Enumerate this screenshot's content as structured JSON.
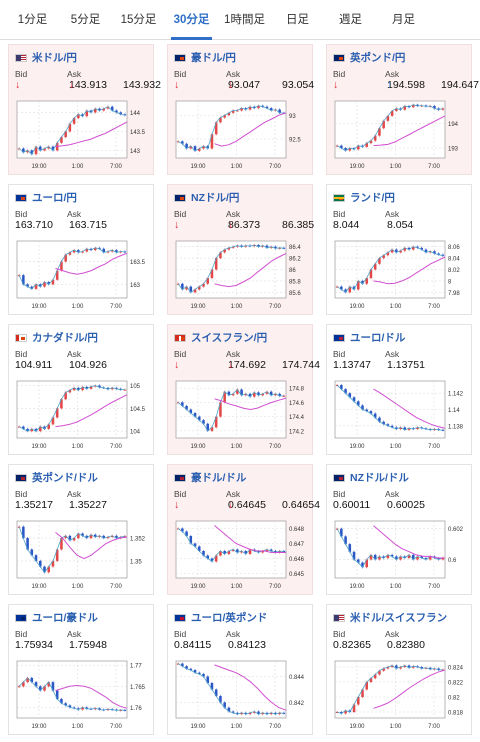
{
  "tabs": [
    {
      "label": "1分足",
      "active": false
    },
    {
      "label": "5分足",
      "active": false
    },
    {
      "label": "15分足",
      "active": false
    },
    {
      "label": "30分足",
      "active": true
    },
    {
      "label": "1時間足",
      "active": false
    },
    {
      "label": "日足",
      "active": false
    },
    {
      "label": "週足",
      "active": false
    },
    {
      "label": "月足",
      "active": false
    }
  ],
  "labels": {
    "bid": "Bid",
    "ask": "Ask"
  },
  "colors": {
    "up": "#e24848",
    "down": "#2a56c6",
    "ma_blue": "#4fa3c9",
    "ma_pink": "#d14fd1",
    "card_highlight": "#fdf0f0"
  },
  "pairs": [
    {
      "name": "米ドル/円",
      "flag": "us-jp",
      "bid": "143.913",
      "bid_dir": "down",
      "ask": "143.932",
      "ask_dir": "down",
      "highlight": true,
      "ticks": [
        "144",
        "143.5",
        "143"
      ],
      "xticks": [
        "19:00",
        "1:00",
        "7:00"
      ],
      "chart_data": {
        "type": "candlestick",
        "ylim": [
          142.8,
          144.3
        ],
        "close": [
          143.05,
          142.95,
          143.0,
          142.9,
          143.1,
          143.0,
          143.05,
          143.1,
          143.0,
          143.2,
          143.35,
          143.5,
          143.7,
          143.85,
          143.95,
          143.9,
          144.05,
          144.0,
          144.1,
          144.05,
          144.1,
          144.15,
          144.05,
          144.0,
          143.95,
          143.93
        ],
        "pink": [
          143.1,
          143.12,
          143.15,
          143.2,
          143.25,
          143.3,
          143.38,
          143.45,
          143.55,
          143.65,
          143.75
        ]
      }
    },
    {
      "name": "豪ドル/円",
      "flag": "au-jp",
      "bid": "93.047",
      "bid_dir": "down",
      "ask": "93.054",
      "ask_dir": "down",
      "highlight": true,
      "ticks": [
        "93",
        "92.5"
      ],
      "xticks": [
        "19:00",
        "1:00",
        "7:00"
      ],
      "chart_data": {
        "type": "candlestick",
        "ylim": [
          92.1,
          93.3
        ],
        "close": [
          92.45,
          92.4,
          92.3,
          92.35,
          92.25,
          92.3,
          92.35,
          92.3,
          92.6,
          92.85,
          92.95,
          93.0,
          93.05,
          93.1,
          93.1,
          93.15,
          93.12,
          93.18,
          93.15,
          93.2,
          93.18,
          93.15,
          93.1,
          93.12,
          93.05,
          93.047
        ],
        "pink": [
          92.4,
          92.35,
          92.38,
          92.45,
          92.55,
          92.65,
          92.75,
          92.85,
          92.92,
          93.0,
          93.05
        ]
      }
    },
    {
      "name": "英ポンド/円",
      "flag": "uk-jp",
      "bid": "194.598",
      "bid_dir": "down",
      "ask": "194.647",
      "ask_dir": "up",
      "highlight": true,
      "ticks": [
        "194",
        "193"
      ],
      "xticks": [
        "19:00",
        "1:00",
        "7:00"
      ],
      "chart_data": {
        "type": "candlestick",
        "ylim": [
          192.6,
          194.9
        ],
        "close": [
          193.1,
          193.0,
          192.9,
          193.0,
          192.95,
          193.1,
          193.05,
          193.2,
          193.3,
          193.5,
          193.8,
          194.1,
          194.3,
          194.5,
          194.6,
          194.55,
          194.7,
          194.65,
          194.75,
          194.7,
          194.72,
          194.68,
          194.7,
          194.6,
          194.55,
          194.6
        ],
        "pink": [
          193.1,
          193.12,
          193.15,
          193.25,
          193.4,
          193.55,
          193.7,
          193.85,
          194.0,
          194.15,
          194.3
        ]
      }
    },
    {
      "name": "ユーロ/円",
      "flag": "eu-jp",
      "bid": "163.710",
      "bid_dir": "none",
      "ask": "163.715",
      "ask_dir": "none",
      "highlight": false,
      "ticks": [
        "163.5",
        "163"
      ],
      "xticks": [
        "19:00",
        "1:00",
        "7:00"
      ],
      "chart_data": {
        "type": "candlestick",
        "ylim": [
          162.7,
          163.95
        ],
        "close": [
          163.2,
          163.0,
          162.95,
          162.9,
          163.0,
          162.95,
          163.05,
          163.0,
          163.1,
          163.3,
          163.5,
          163.65,
          163.7,
          163.75,
          163.7,
          163.72,
          163.78,
          163.75,
          163.8,
          163.78,
          163.7,
          163.72,
          163.75,
          163.7,
          163.72,
          163.71
        ],
        "pink": [
          163.35,
          163.3,
          163.25,
          163.22,
          163.25,
          163.3,
          163.38,
          163.45,
          163.55,
          163.62,
          163.68
        ]
      }
    },
    {
      "name": "NZドル/円",
      "flag": "nz-jp",
      "bid": "86.373",
      "bid_dir": "down",
      "ask": "86.385",
      "ask_dir": "down",
      "highlight": true,
      "ticks": [
        "86.4",
        "86.2",
        "86",
        "85.8",
        "85.6"
      ],
      "xticks": [
        "19:00",
        "1:00",
        "7:00"
      ],
      "chart_data": {
        "type": "candlestick",
        "ylim": [
          85.5,
          86.5
        ],
        "close": [
          85.75,
          85.65,
          85.7,
          85.6,
          85.65,
          85.7,
          85.75,
          85.85,
          86.0,
          86.2,
          86.3,
          86.35,
          86.38,
          86.4,
          86.42,
          86.4,
          86.42,
          86.41,
          86.43,
          86.4,
          86.42,
          86.38,
          86.4,
          86.37,
          86.38,
          86.373
        ],
        "pink": [
          85.75,
          85.72,
          85.7,
          85.72,
          85.78,
          85.85,
          85.95,
          86.05,
          86.15,
          86.22,
          86.28
        ]
      }
    },
    {
      "name": "ランド/円",
      "flag": "za-jp",
      "bid": "8.044",
      "bid_dir": "none",
      "ask": "8.054",
      "ask_dir": "none",
      "highlight": false,
      "ticks": [
        "8.06",
        "8.04",
        "8.02",
        "8",
        "7.98"
      ],
      "xticks": [
        "19:00",
        "1:00",
        "7:00"
      ],
      "chart_data": {
        "type": "candlestick",
        "ylim": [
          7.97,
          8.07
        ],
        "close": [
          7.99,
          7.985,
          7.98,
          7.99,
          7.985,
          8.0,
          7.995,
          8.005,
          8.02,
          8.03,
          8.04,
          8.045,
          8.05,
          8.055,
          8.05,
          8.053,
          8.058,
          8.055,
          8.06,
          8.058,
          8.055,
          8.05,
          8.052,
          8.048,
          8.046,
          8.044
        ],
        "pink": [
          8.0,
          7.998,
          7.995,
          7.996,
          8.0,
          8.006,
          8.014,
          8.022,
          8.03,
          8.036,
          8.042
        ]
      }
    },
    {
      "name": "カナダドル/円",
      "flag": "ca-jp",
      "bid": "104.911",
      "bid_dir": "none",
      "ask": "104.926",
      "ask_dir": "none",
      "highlight": false,
      "ticks": [
        "105",
        "104.5",
        "104"
      ],
      "xticks": [
        "19:00",
        "1:00",
        "7:00"
      ],
      "chart_data": {
        "type": "candlestick",
        "ylim": [
          103.85,
          105.1
        ],
        "close": [
          104.1,
          104.05,
          104.0,
          104.05,
          104.0,
          104.1,
          104.05,
          104.15,
          104.3,
          104.5,
          104.7,
          104.85,
          104.9,
          104.95,
          104.9,
          104.97,
          104.93,
          104.98,
          105.0,
          104.96,
          104.95,
          104.92,
          104.95,
          104.93,
          104.91,
          104.911
        ],
        "pink": [
          104.1,
          104.12,
          104.15,
          104.2,
          104.28,
          104.36,
          104.45,
          104.55,
          104.64,
          104.72,
          104.8
        ]
      }
    },
    {
      "name": "スイスフラン/円",
      "flag": "ch-jp",
      "bid": "174.692",
      "bid_dir": "down",
      "ask": "174.744",
      "ask_dir": "down",
      "highlight": true,
      "ticks": [
        "174.8",
        "174.6",
        "174.4",
        "174.2"
      ],
      "xticks": [
        "19:00",
        "1:00",
        "7:00"
      ],
      "chart_data": {
        "type": "candlestick",
        "ylim": [
          174.1,
          174.9
        ],
        "close": [
          174.6,
          174.55,
          174.5,
          174.45,
          174.4,
          174.35,
          174.3,
          174.2,
          174.25,
          174.4,
          174.6,
          174.75,
          174.7,
          174.72,
          174.78,
          174.7,
          174.72,
          174.68,
          174.74,
          174.7,
          174.72,
          174.75,
          174.7,
          174.72,
          174.69,
          174.692
        ],
        "pink": [
          174.65,
          174.62,
          174.58,
          174.55,
          174.52,
          174.5,
          174.52,
          174.56,
          174.6,
          174.63,
          174.66
        ]
      }
    },
    {
      "name": "ユーロ/ドル",
      "flag": "eu-us",
      "bid": "1.13747",
      "bid_dir": "none",
      "ask": "1.13751",
      "ask_dir": "none",
      "highlight": false,
      "ticks": [
        "1.142",
        "1.14",
        "1.138"
      ],
      "xticks": [
        "19:00",
        "1:00",
        "7:00"
      ],
      "chart_data": {
        "type": "candlestick",
        "ylim": [
          1.1365,
          1.1435
        ],
        "close": [
          1.143,
          1.1425,
          1.142,
          1.1415,
          1.141,
          1.1405,
          1.14,
          1.1398,
          1.1395,
          1.139,
          1.1385,
          1.1382,
          1.138,
          1.1378,
          1.1376,
          1.1378,
          1.1375,
          1.1377,
          1.1376,
          1.1378,
          1.1377,
          1.1376,
          1.1375,
          1.1376,
          1.1375,
          1.13747
        ],
        "pink": [
          1.1425,
          1.142,
          1.1414,
          1.1408,
          1.1402,
          1.1396,
          1.139,
          1.1386,
          1.1382,
          1.1379,
          1.1377
        ]
      }
    },
    {
      "name": "英ポンド/ドル",
      "flag": "uk-us",
      "bid": "1.35217",
      "bid_dir": "none",
      "ask": "1.35227",
      "ask_dir": "none",
      "highlight": false,
      "ticks": [
        "1.352",
        "1.35"
      ],
      "xticks": [
        "19:00",
        "1:00",
        "7:00"
      ],
      "chart_data": {
        "type": "candlestick",
        "ylim": [
          1.3485,
          1.3535
        ],
        "close": [
          1.353,
          1.352,
          1.351,
          1.3505,
          1.35,
          1.3495,
          1.349,
          1.3495,
          1.35,
          1.351,
          1.352,
          1.3522,
          1.3518,
          1.352,
          1.3524,
          1.3522,
          1.352,
          1.3523,
          1.3521,
          1.3522,
          1.352,
          1.3521,
          1.3522,
          1.352,
          1.3521,
          1.35217
        ],
        "pink": [
          1.3525,
          1.352,
          1.3512,
          1.3505,
          1.3502,
          1.3505,
          1.351,
          1.3515,
          1.3518,
          1.352,
          1.3521
        ]
      }
    },
    {
      "name": "豪ドル/ドル",
      "flag": "au-us",
      "bid": "0.64645",
      "bid_dir": "down",
      "ask": "0.64654",
      "ask_dir": "down",
      "highlight": true,
      "ticks": [
        "0.648",
        "0.647",
        "0.646",
        "0.645"
      ],
      "xticks": [
        "19:00",
        "1:00",
        "7:00"
      ],
      "chart_data": {
        "type": "candlestick",
        "ylim": [
          0.6447,
          0.6485
        ],
        "close": [
          0.648,
          0.6478,
          0.6475,
          0.647,
          0.6468,
          0.6465,
          0.6462,
          0.646,
          0.6458,
          0.6462,
          0.6465,
          0.6463,
          0.6465,
          0.6466,
          0.6464,
          0.6465,
          0.6463,
          0.6466,
          0.6465,
          0.6464,
          0.6465,
          0.6466,
          0.6465,
          0.6464,
          0.6465,
          0.64645
        ],
        "pink": [
          0.6482,
          0.6478,
          0.6474,
          0.647,
          0.6468,
          0.6466,
          0.6465,
          0.6465,
          0.6464,
          0.6464,
          0.6464
        ]
      }
    },
    {
      "name": "NZドル/ドル",
      "flag": "nz-us",
      "bid": "0.60011",
      "bid_dir": "none",
      "ask": "0.60025",
      "ask_dir": "none",
      "highlight": false,
      "ticks": [
        "0.602",
        "0.6"
      ],
      "xticks": [
        "19:00",
        "1:00",
        "7:00"
      ],
      "chart_data": {
        "type": "candlestick",
        "ylim": [
          0.5988,
          0.6025
        ],
        "close": [
          0.602,
          0.6015,
          0.601,
          0.6005,
          0.6,
          0.5998,
          0.5995,
          0.6,
          0.6003,
          0.6,
          0.6002,
          0.6001,
          0.6003,
          0.6002,
          0.6,
          0.6002,
          0.6001,
          0.6003,
          0.6,
          0.6002,
          0.6001,
          0.6,
          0.6002,
          0.6001,
          0.6,
          0.60011
        ],
        "pink": [
          0.6022,
          0.6018,
          0.6014,
          0.601,
          0.6007,
          0.6005,
          0.6003,
          0.6002,
          0.6002,
          0.6001,
          0.6001
        ]
      }
    },
    {
      "name": "ユーロ/豪ドル",
      "flag": "eu-au",
      "bid": "1.75934",
      "bid_dir": "none",
      "ask": "1.75948",
      "ask_dir": "none",
      "highlight": false,
      "ticks": [
        "1.77",
        "1.765",
        "1.76"
      ],
      "xticks": [
        "19:00",
        "1:00",
        "7:00"
      ],
      "chart_data": {
        "type": "candlestick",
        "ylim": [
          1.7575,
          1.771
        ],
        "close": [
          1.765,
          1.766,
          1.767,
          1.766,
          1.765,
          1.764,
          1.765,
          1.766,
          1.764,
          1.762,
          1.761,
          1.7605,
          1.76,
          1.7598,
          1.7595,
          1.76,
          1.7597,
          1.7596,
          1.7598,
          1.7595,
          1.7594,
          1.7596,
          1.7595,
          1.7593,
          1.7594,
          1.75934
        ],
        "pink": [
          1.764,
          1.7645,
          1.765,
          1.7652,
          1.765,
          1.7645,
          1.7635,
          1.7625,
          1.7612,
          1.7603,
          1.7598
        ]
      }
    },
    {
      "name": "ユーロ/英ポンド",
      "flag": "eu-uk",
      "bid": "0.84115",
      "bid_dir": "none",
      "ask": "0.84123",
      "ask_dir": "none",
      "highlight": false,
      "ticks": [
        "0.844",
        "0.842"
      ],
      "xticks": [
        "19:00",
        "1:00",
        "7:00"
      ],
      "chart_data": {
        "type": "candlestick",
        "ylim": [
          0.8408,
          0.8452
        ],
        "close": [
          0.845,
          0.8448,
          0.8446,
          0.8445,
          0.8443,
          0.8442,
          0.844,
          0.8435,
          0.843,
          0.8425,
          0.842,
          0.8416,
          0.8413,
          0.8412,
          0.8411,
          0.8412,
          0.8411,
          0.8412,
          0.8413,
          0.8411,
          0.8412,
          0.8411,
          0.8412,
          0.8411,
          0.8412,
          0.84115
        ],
        "pink": [
          0.8449,
          0.8447,
          0.8445,
          0.8443,
          0.844,
          0.8436,
          0.8431,
          0.8425,
          0.842,
          0.8416,
          0.8414
        ]
      }
    },
    {
      "name": "米ドル/スイスフラン",
      "flag": "us-ch",
      "bid": "0.82365",
      "bid_dir": "none",
      "ask": "0.82380",
      "ask_dir": "none",
      "highlight": false,
      "ticks": [
        "0.824",
        "0.822",
        "0.82",
        "0.818"
      ],
      "xticks": [
        "19:00",
        "1:00",
        "7:00"
      ],
      "chart_data": {
        "type": "candlestick",
        "ylim": [
          0.8172,
          0.8248
        ],
        "close": [
          0.818,
          0.8178,
          0.8182,
          0.818,
          0.819,
          0.82,
          0.821,
          0.822,
          0.8225,
          0.823,
          0.8235,
          0.8238,
          0.824,
          0.8242,
          0.8238,
          0.824,
          0.8242,
          0.8239,
          0.8241,
          0.824,
          0.8238,
          0.8239,
          0.8237,
          0.8238,
          0.8236,
          0.82365
        ],
        "pink": [
          0.8185,
          0.8188,
          0.8192,
          0.8198,
          0.8205,
          0.8212,
          0.8218,
          0.8224,
          0.8229,
          0.8233,
          0.8236
        ]
      }
    }
  ]
}
